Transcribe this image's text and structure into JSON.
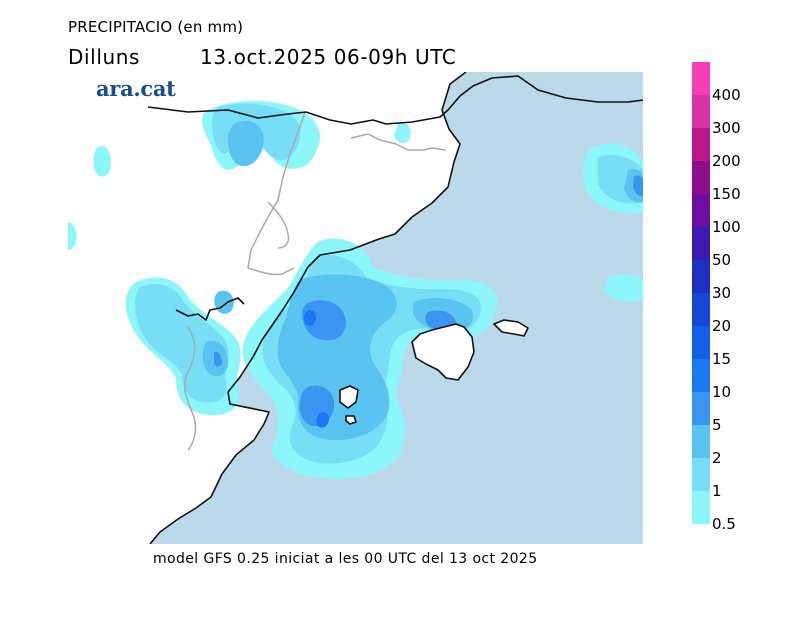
{
  "header": {
    "title": "PRECIPITACIO (en mm)",
    "day": "Dilluns",
    "date_time": "13.oct.2025 06-09h UTC"
  },
  "brand": {
    "logo_text": "ara.cat"
  },
  "footer": {
    "model_info": "model GFS 0.25 iniciat a les 00 UTC del 13 oct 2025"
  },
  "colors": {
    "sea": "#bcd9ea",
    "land": "#ffffff",
    "coast": "#111111",
    "border": "#a9a9a9"
  },
  "legend": {
    "unit": "mm",
    "items": [
      {
        "label": "400",
        "color": "#f43fb4"
      },
      {
        "label": "300",
        "color": "#d933a8"
      },
      {
        "label": "200",
        "color": "#b9198d"
      },
      {
        "label": "150",
        "color": "#8e0d8c"
      },
      {
        "label": "100",
        "color": "#6a0fa0"
      },
      {
        "label": "50",
        "color": "#3b1bb3"
      },
      {
        "label": "30",
        "color": "#1f2fc3"
      },
      {
        "label": "20",
        "color": "#1646d6"
      },
      {
        "label": "15",
        "color": "#135fe8"
      },
      {
        "label": "10",
        "color": "#1a78f2"
      },
      {
        "label": "5",
        "color": "#3b95f0"
      },
      {
        "label": "2",
        "color": "#5bc3f0"
      },
      {
        "label": "1",
        "color": "#77def6"
      },
      {
        "label": "0.5",
        "color": "#8cf6fb"
      }
    ]
  },
  "map": {
    "region": "Catalonia, Balearic Islands and western Mediterranean",
    "layers": [
      "sea",
      "land",
      "precipitation",
      "borders",
      "coastline"
    ],
    "precipitation_cells": [
      {
        "name": "pyrenees-west",
        "level_mm": 2
      },
      {
        "name": "pyrenees-center",
        "level_mm": 1
      },
      {
        "name": "ebro-delta",
        "level_mm": 5
      },
      {
        "name": "balearic-channel",
        "level_mm": 10
      },
      {
        "name": "ibiza-area",
        "level_mm": 10
      },
      {
        "name": "mallorca-north",
        "level_mm": 5
      },
      {
        "name": "sardinia-west",
        "level_mm": 5
      },
      {
        "name": "aragon-south",
        "level_mm": 2
      }
    ]
  }
}
